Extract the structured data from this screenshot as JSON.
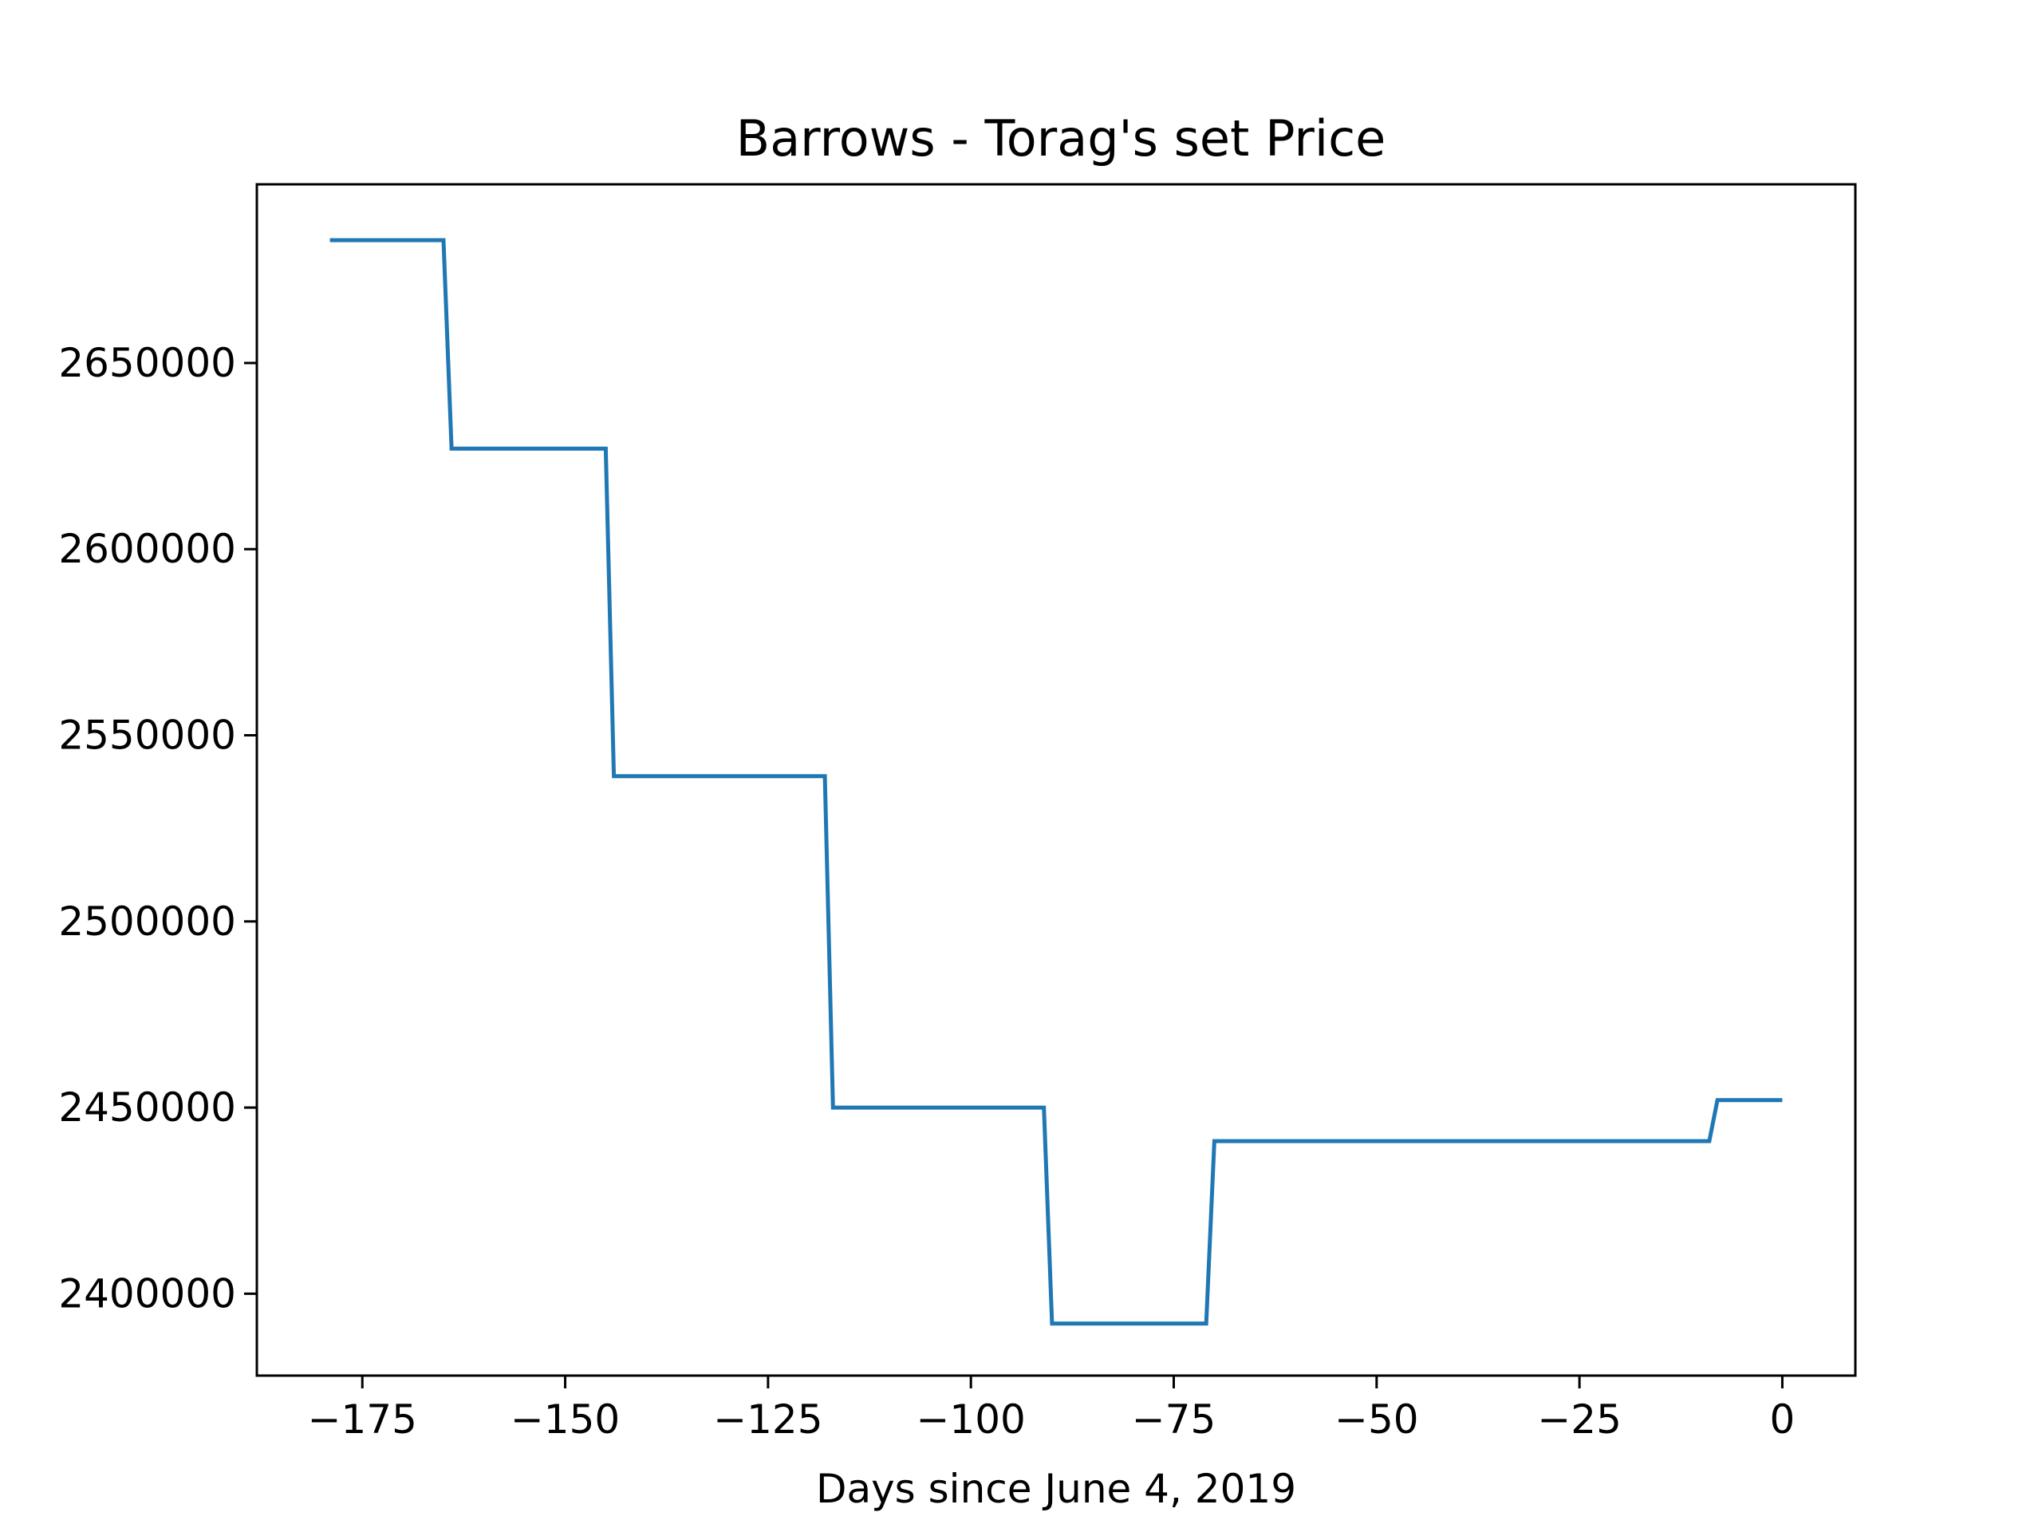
{
  "chart_data": {
    "type": "line",
    "title": "Barrows - Torag's set Price",
    "xlabel": "Days since June 4, 2019",
    "ylabel": "",
    "xlim": [
      -188,
      9
    ],
    "ylim": [
      2378000,
      2698000
    ],
    "xticks": [
      -175,
      -150,
      -125,
      -100,
      -75,
      -50,
      -25,
      0
    ],
    "xtick_labels": [
      "−175",
      "−150",
      "−125",
      "−100",
      "−75",
      "−50",
      "−25",
      "0"
    ],
    "yticks": [
      2400000,
      2450000,
      2500000,
      2550000,
      2600000,
      2650000
    ],
    "ytick_labels": [
      "2400000",
      "2450000",
      "2500000",
      "2550000",
      "2600000",
      "2650000"
    ],
    "grid": false,
    "series": [
      {
        "color": "#1f77b4",
        "x": [
          -179,
          -165,
          -164,
          -145,
          -144,
          -118,
          -117,
          -91,
          -90,
          -71,
          -70,
          -42,
          -9,
          -8,
          0
        ],
        "y": [
          2683000,
          2683000,
          2627000,
          2627000,
          2539000,
          2539000,
          2450000,
          2450000,
          2392000,
          2392000,
          2441000,
          2441000,
          2441000,
          2452000,
          2452000
        ]
      }
    ]
  }
}
